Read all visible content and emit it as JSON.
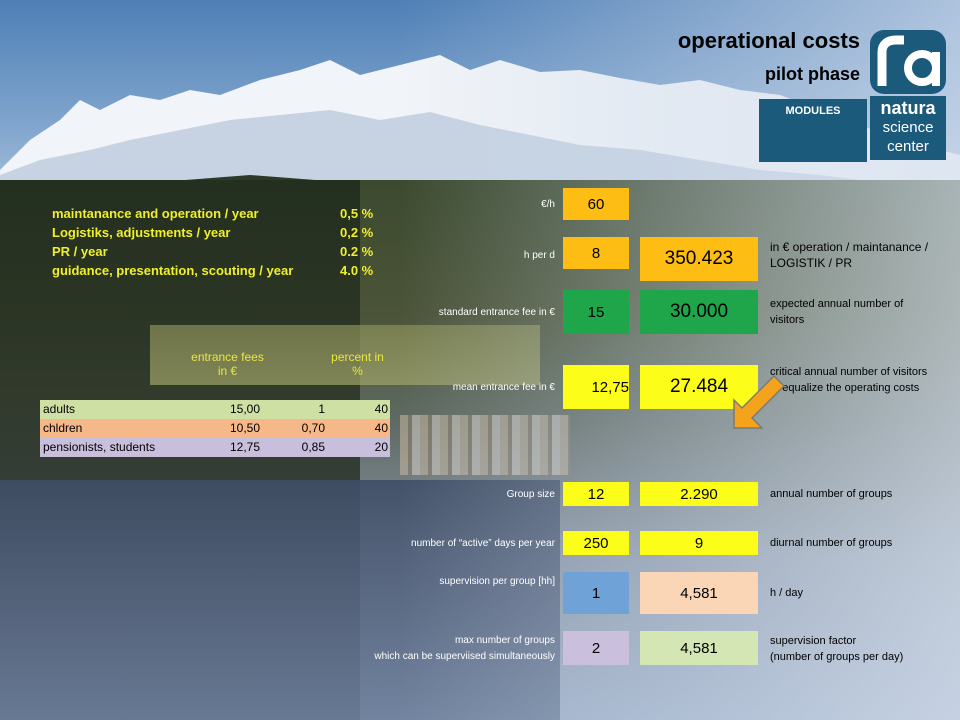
{
  "header": {
    "title": "operational costs",
    "subtitle": "pilot phase",
    "modules_button": "MODULES"
  },
  "logo": {
    "line1": "natura",
    "line2": "science",
    "line3": "center",
    "color": "#1c5a7c"
  },
  "legend": [
    {
      "label": "maintanance and operation / year",
      "value": "0,5 %"
    },
    {
      "label": "Logistiks, adjustments / year",
      "value": "0,2 %"
    },
    {
      "label": "PR / year",
      "value": "0.2 %"
    },
    {
      "label": "guidance, presentation, scouting / year",
      "value": "4.0 %"
    }
  ],
  "fee_table": {
    "header_fees": "entrance fees in €",
    "header_percent": "percent in %",
    "rows": [
      {
        "name": "adults",
        "fee": "15,00",
        "factor": "1",
        "percent": "40",
        "color": "#cfe0a4"
      },
      {
        "name": "chldren",
        "fee": "10,50",
        "factor": "0,70",
        "percent": "40",
        "color": "#f6b888"
      },
      {
        "name": "pensionists, students",
        "fee": "12,75",
        "factor": "0,85",
        "percent": "20",
        "color": "#c8bfdc"
      }
    ]
  },
  "calc": {
    "rate": {
      "label": "€/h",
      "value": "60"
    },
    "hours": {
      "label": "h per d",
      "value": "8",
      "result": "350.423",
      "desc": "in €  operation / maintanance / LOGISTIK / PR"
    },
    "standard_fee": {
      "label": "standard entrance fee  in €",
      "value": "15",
      "result": "30.000",
      "desc": "expected  annual number of visitors"
    },
    "mean_fee": {
      "label": "mean entrance fee  in €",
      "value": "12,75",
      "result": "27.484",
      "desc": "critical  annual number of visitors to equalize the operating costs"
    },
    "group_size": {
      "label": "Group size",
      "value": "12",
      "result": "2.290",
      "desc": "annual number of groups"
    },
    "active_days": {
      "label": "number of “active” days per year",
      "value": "250",
      "result": "9",
      "desc": "diurnal number of groups"
    },
    "supervision": {
      "label": "supervision per group [hh]",
      "value": "1",
      "result": "4,581",
      "desc": "h / day"
    },
    "max_groups": {
      "label_line1": "max number of groups",
      "label_line2": "which can be superviised simultaneously",
      "value": "2",
      "result": "4,581",
      "desc_line1": "supervision factor",
      "desc_line2": "(number of groups per day)"
    }
  },
  "colors": {
    "orange": "#fdbd12",
    "yellow": "#fdfd1a",
    "green": "#1fa54a",
    "blue": "#6fa2d6",
    "peach": "#fad6b6",
    "lavender": "#cac0dd",
    "light_green": "#d4e6b4",
    "arrow": "#f5a31a"
  }
}
